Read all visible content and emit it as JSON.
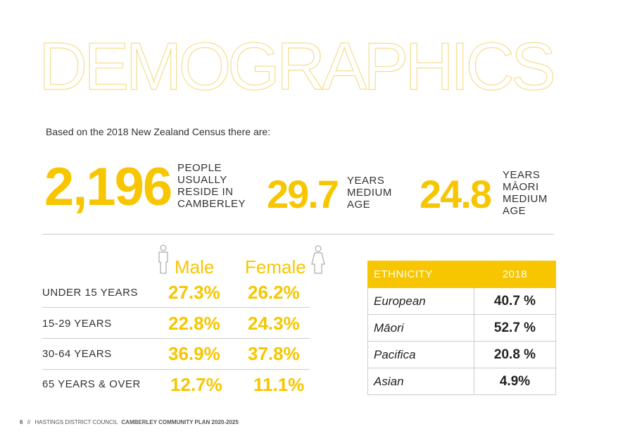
{
  "title": "DEMOGRAPHICS",
  "intro": "Based on the 2018 New Zealand Census there are:",
  "stats": [
    {
      "value": "2,196",
      "label": [
        "PEOPLE",
        "USUALLY",
        "RESIDE IN",
        "CAMBERLEY"
      ]
    },
    {
      "value": "29.7",
      "label": [
        "YEARS",
        "MEDIUM",
        "AGE"
      ]
    },
    {
      "value": "24.8",
      "label": [
        "YEARS",
        "MĀORI",
        "MEDIUM",
        "AGE"
      ]
    }
  ],
  "age_table": {
    "headers": [
      "Male",
      "Female"
    ],
    "rows": [
      [
        "UNDER 15 YEARS",
        "27.3%",
        "26.2%"
      ],
      [
        "15-29 YEARS",
        "22.8%",
        "24.3%"
      ],
      [
        "30-64 YEARS",
        "36.9%",
        "37.8%"
      ],
      [
        "65 YEARS & OVER",
        "12.7%",
        "11.1%"
      ]
    ]
  },
  "ethnicity_table": {
    "headers": [
      "ETHNICITY",
      "2018"
    ],
    "rows": [
      [
        "European",
        "40.7 %"
      ],
      [
        "Māori",
        "52.7 %"
      ],
      [
        "Pacifica",
        "20.8 %"
      ],
      [
        "Asian",
        "4.9%"
      ]
    ]
  },
  "footer": {
    "page": "6",
    "separator": "//",
    "org": "HASTINGS DISTRICT COUNCIL",
    "doc": "CAMBERLEY COMMUNITY PLAN 2020-2025"
  }
}
